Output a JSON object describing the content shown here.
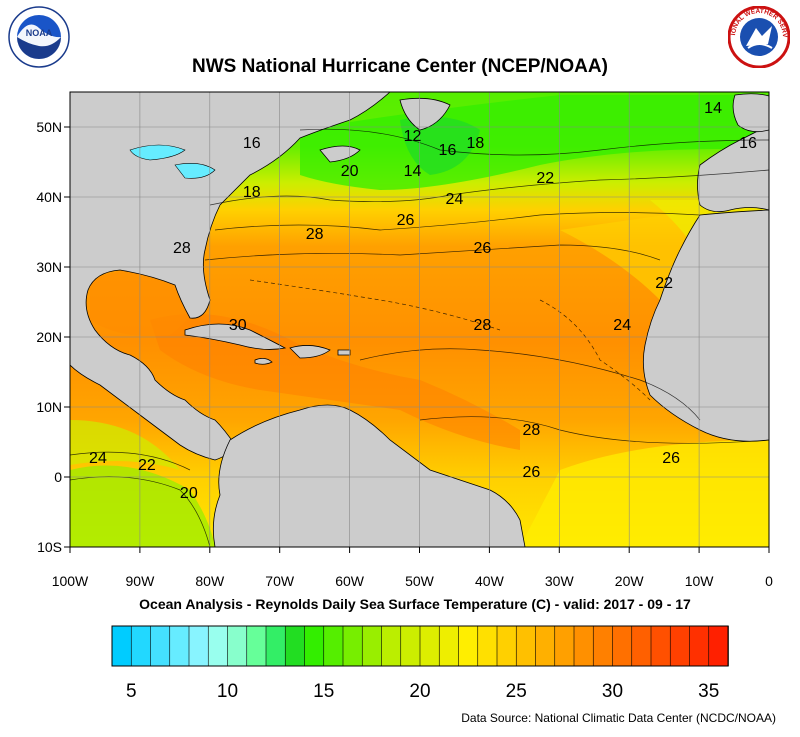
{
  "title": "NWS National Hurricane Center (NCEP/NOAA)",
  "subtitle": "Ocean Analysis - Reynolds Daily Sea Surface Temperature (C) - valid: 2017 - 09 - 17",
  "source": "Data Source: National Climatic Data Center (NCDC/NOAA)",
  "logos": {
    "left": {
      "text": "NOAA",
      "icon": "noaa-logo-icon"
    },
    "right": {
      "text": "NATIONAL WEATHER SERVICE",
      "icon": "nws-logo-icon"
    }
  },
  "map": {
    "lon_range": [
      -100,
      0
    ],
    "lat_range": [
      -10,
      55
    ],
    "lon_ticks": [
      {
        "lon": -100,
        "label": "100W"
      },
      {
        "lon": -90,
        "label": "90W"
      },
      {
        "lon": -80,
        "label": "80W"
      },
      {
        "lon": -70,
        "label": "70W"
      },
      {
        "lon": -60,
        "label": "60W"
      },
      {
        "lon": -50,
        "label": "50W"
      },
      {
        "lon": -40,
        "label": "40W"
      },
      {
        "lon": -30,
        "label": "30W"
      },
      {
        "lon": -20,
        "label": "20W"
      },
      {
        "lon": -10,
        "label": "10W"
      },
      {
        "lon": 0,
        "label": "0"
      }
    ],
    "lat_ticks": [
      {
        "lat": 50,
        "label": "50N"
      },
      {
        "lat": 40,
        "label": "40N"
      },
      {
        "lat": 30,
        "label": "30N"
      },
      {
        "lat": 20,
        "label": "20N"
      },
      {
        "lat": 10,
        "label": "10N"
      },
      {
        "lat": 0,
        "label": "0"
      },
      {
        "lat": -10,
        "label": "10S"
      }
    ],
    "grid": true,
    "land_color": "#cccccc",
    "contour_labels": [
      {
        "text": "14",
        "lon": -8,
        "lat": 52
      },
      {
        "text": "12",
        "lon": -51,
        "lat": 48
      },
      {
        "text": "16",
        "lon": -74,
        "lat": 47
      },
      {
        "text": "18",
        "lon": -42,
        "lat": 47
      },
      {
        "text": "16",
        "lon": -46,
        "lat": 46
      },
      {
        "text": "16",
        "lon": -3,
        "lat": 47
      },
      {
        "text": "20",
        "lon": -60,
        "lat": 43
      },
      {
        "text": "14",
        "lon": -51,
        "lat": 43
      },
      {
        "text": "22",
        "lon": -32,
        "lat": 42
      },
      {
        "text": "18",
        "lon": -74,
        "lat": 40
      },
      {
        "text": "24",
        "lon": -45,
        "lat": 39
      },
      {
        "text": "26",
        "lon": -52,
        "lat": 36
      },
      {
        "text": "28",
        "lon": -65,
        "lat": 34
      },
      {
        "text": "28",
        "lon": -84,
        "lat": 32
      },
      {
        "text": "26",
        "lon": -41,
        "lat": 32
      },
      {
        "text": "22",
        "lon": -15,
        "lat": 27
      },
      {
        "text": "28",
        "lon": -41,
        "lat": 21
      },
      {
        "text": "24",
        "lon": -21,
        "lat": 21
      },
      {
        "text": "30",
        "lon": -76,
        "lat": 21
      },
      {
        "text": "28",
        "lon": -34,
        "lat": 6
      },
      {
        "text": "26",
        "lon": -34,
        "lat": 0
      },
      {
        "text": "26",
        "lon": -14,
        "lat": 2
      },
      {
        "text": "24",
        "lon": -96,
        "lat": 2
      },
      {
        "text": "22",
        "lon": -89,
        "lat": 1
      },
      {
        "text": "20",
        "lon": -83,
        "lat": -3
      }
    ]
  },
  "colorbar": {
    "label_values": [
      5,
      10,
      15,
      20,
      25,
      30,
      35
    ],
    "levels_range": [
      4,
      36
    ],
    "colors": [
      "#00ccff",
      "#22d8ff",
      "#44e0ff",
      "#66ecff",
      "#88f4ff",
      "#99ffee",
      "#88ffcc",
      "#66ff99",
      "#33ee66",
      "#22dd22",
      "#33ee00",
      "#55ee00",
      "#77ee00",
      "#99ee00",
      "#bbee00",
      "#ccee00",
      "#ddee00",
      "#eeee00",
      "#ffee00",
      "#ffe000",
      "#ffd000",
      "#ffc000",
      "#ffb000",
      "#ffa000",
      "#ff9000",
      "#ff8000",
      "#ff7000",
      "#ff6000",
      "#ff5000",
      "#ff4000",
      "#ff3000",
      "#ff2000"
    ]
  }
}
